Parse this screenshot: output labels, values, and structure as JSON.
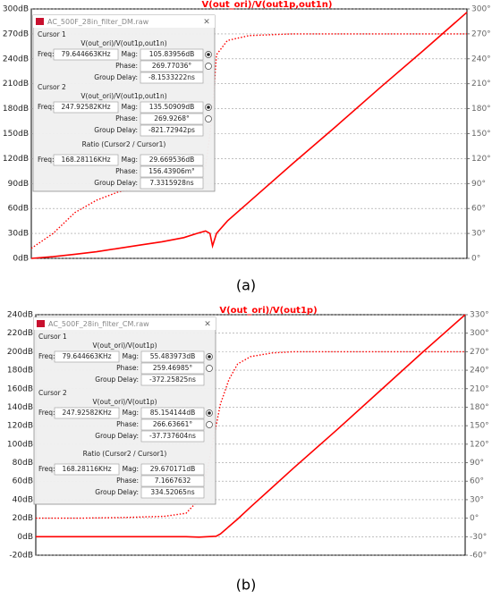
{
  "chart_data": [
    {
      "type": "line",
      "title": "V(out_ori)/V(out1p,out1n)",
      "x": [
        0,
        5,
        10,
        15,
        20,
        25,
        30,
        35,
        38,
        40,
        41,
        41.6,
        42.5,
        45,
        50,
        60,
        70,
        80,
        90,
        100
      ],
      "xlim": [
        0,
        100
      ],
      "xscale": "log",
      "grid": true,
      "ylim": [
        0,
        300
      ],
      "yticks": [
        {
          "value": 0,
          "label": "0dB"
        },
        {
          "value": 30,
          "label": "30dB"
        },
        {
          "value": 60,
          "label": "60dB"
        },
        {
          "value": 90,
          "label": "90dB"
        },
        {
          "value": 120,
          "label": "120dB"
        },
        {
          "value": 150,
          "label": "150dB"
        },
        {
          "value": 180,
          "label": "180dB"
        },
        {
          "value": 210,
          "label": "210dB"
        },
        {
          "value": 240,
          "label": "240dB"
        },
        {
          "value": 270,
          "label": "270dB"
        },
        {
          "value": 300,
          "label": "300dB"
        }
      ],
      "y2lim": [
        0,
        300
      ],
      "y2ticks": [
        {
          "value": 0,
          "label": "0°"
        },
        {
          "value": 30,
          "label": "30°"
        },
        {
          "value": 60,
          "label": "60°"
        },
        {
          "value": 90,
          "label": "90°"
        },
        {
          "value": 120,
          "label": "120°"
        },
        {
          "value": 150,
          "label": "150°"
        },
        {
          "value": 180,
          "label": "180°"
        },
        {
          "value": 210,
          "label": "210°"
        },
        {
          "value": 240,
          "label": "240°"
        },
        {
          "value": 270,
          "label": "270°"
        },
        {
          "value": 300,
          "label": "300°"
        }
      ],
      "series": [
        {
          "color": "#ff0000",
          "line_style": "solid",
          "values": [
            0,
            2,
            5,
            8,
            12,
            16,
            20,
            25,
            30,
            33,
            30,
            15,
            30,
            45,
            68,
            114,
            159,
            205,
            250,
            296
          ]
        },
        {
          "color": "#ff0000",
          "line_style": "dotted",
          "axis": "y2",
          "values": [
            12,
            30,
            55,
            70,
            80,
            85,
            88,
            90,
            95,
            110,
            150,
            180,
            245,
            262,
            268,
            270,
            270,
            270,
            270,
            270
          ]
        }
      ]
    },
    {
      "type": "line",
      "title": "V(out_ori)/V(out1p)",
      "x": [
        0,
        10,
        20,
        30,
        35,
        38,
        40,
        42,
        43,
        45,
        47,
        50,
        55,
        60,
        70,
        80,
        90,
        100
      ],
      "xlim": [
        0,
        100
      ],
      "xscale": "log",
      "grid": true,
      "ylim": [
        -20,
        240
      ],
      "yticks": [
        {
          "value": -20,
          "label": "-20dB"
        },
        {
          "value": 0,
          "label": "0dB"
        },
        {
          "value": 20,
          "label": "20dB"
        },
        {
          "value": 40,
          "label": "40dB"
        },
        {
          "value": 60,
          "label": "60dB"
        },
        {
          "value": 80,
          "label": "80dB"
        },
        {
          "value": 100,
          "label": "100dB"
        },
        {
          "value": 120,
          "label": "120dB"
        },
        {
          "value": 140,
          "label": "140dB"
        },
        {
          "value": 160,
          "label": "160dB"
        },
        {
          "value": 180,
          "label": "180dB"
        },
        {
          "value": 200,
          "label": "200dB"
        },
        {
          "value": 220,
          "label": "220dB"
        },
        {
          "value": 240,
          "label": "240dB"
        }
      ],
      "y2lim": [
        -60,
        330
      ],
      "y2ticks": [
        {
          "value": -60,
          "label": "-60°"
        },
        {
          "value": -30,
          "label": "-30°"
        },
        {
          "value": 0,
          "label": "0°"
        },
        {
          "value": 30,
          "label": "30°"
        },
        {
          "value": 60,
          "label": "60°"
        },
        {
          "value": 90,
          "label": "90°"
        },
        {
          "value": 120,
          "label": "120°"
        },
        {
          "value": 150,
          "label": "150°"
        },
        {
          "value": 180,
          "label": "180°"
        },
        {
          "value": 210,
          "label": "210°"
        },
        {
          "value": 240,
          "label": "240°"
        },
        {
          "value": 270,
          "label": "270°"
        },
        {
          "value": 300,
          "label": "300°"
        },
        {
          "value": 330,
          "label": "330°"
        }
      ],
      "series": [
        {
          "color": "#ff0000",
          "line_style": "solid",
          "values": [
            0,
            0,
            0,
            0,
            0,
            -0.5,
            0,
            0.5,
            3,
            11,
            19,
            32,
            53,
            74,
            115,
            157,
            199,
            240
          ]
        },
        {
          "color": "#ff0000",
          "line_style": "dotted",
          "axis": "y2",
          "values": [
            0,
            0,
            1,
            3,
            8,
            30,
            80,
            150,
            185,
            225,
            250,
            262,
            268,
            270,
            270,
            270,
            270,
            270
          ]
        }
      ]
    }
  ],
  "dialogs": [
    {
      "title": "AC_500F_28in_filter_DM.raw",
      "sections": [
        {
          "heading": "Cursor 1",
          "trace": "V(out_ori)/V(out1p,out1n)",
          "freq": {
            "label": "Freq:",
            "value": "79.644663KHz"
          },
          "rows": [
            {
              "label": "Mag:",
              "value": "105.83956dB"
            },
            {
              "label": "Phase:",
              "value": "269.77036°"
            },
            {
              "label": "Group Delay:",
              "value": "-8.1533222ns"
            }
          ]
        },
        {
          "heading": "Cursor 2",
          "trace": "V(out_ori)/V(out1p,out1n)",
          "freq": {
            "label": "Freq:",
            "value": "247.92582KHz"
          },
          "rows": [
            {
              "label": "Mag:",
              "value": "135.50909dB"
            },
            {
              "label": "Phase:",
              "value": "269.9268°"
            },
            {
              "label": "Group Delay:",
              "value": "-821.72942ps"
            }
          ]
        },
        {
          "heading": "Ratio (Cursor2 / Cursor1)",
          "freq": {
            "label": "Freq:",
            "value": "168.28116KHz"
          },
          "rows": [
            {
              "label": "Mag:",
              "value": "29.669536dB"
            },
            {
              "label": "Phase:",
              "value": "156.43906m°"
            },
            {
              "label": "Group Delay:",
              "value": "7.3315928ns"
            }
          ]
        }
      ]
    },
    {
      "title": "AC_500F_28in_filter_CM.raw",
      "sections": [
        {
          "heading": "Cursor 1",
          "trace": "V(out_ori)/V(out1p)",
          "freq": {
            "label": "Freq:",
            "value": "79.644663KHz"
          },
          "rows": [
            {
              "label": "Mag:",
              "value": "55.483973dB"
            },
            {
              "label": "Phase:",
              "value": "259.46985°"
            },
            {
              "label": "Group Delay:",
              "value": "-372.25825ns"
            }
          ]
        },
        {
          "heading": "Cursor 2",
          "trace": "V(out_ori)/V(out1p)",
          "freq": {
            "label": "Freq:",
            "value": "247.92582KHz"
          },
          "rows": [
            {
              "label": "Mag:",
              "value": "85.154144dB"
            },
            {
              "label": "Phase:",
              "value": "266.63661°"
            },
            {
              "label": "Group Delay:",
              "value": "-37.737604ns"
            }
          ]
        },
        {
          "heading": "Ratio (Cursor2 / Cursor1)",
          "freq": {
            "label": "Freq:",
            "value": "168.28116KHz"
          },
          "rows": [
            {
              "label": "Mag:",
              "value": "29.670171dB"
            },
            {
              "label": "Phase:",
              "value": "7.1667632"
            },
            {
              "label": "Group Delay:",
              "value": "334.52065ns"
            }
          ]
        }
      ]
    }
  ],
  "captions": [
    "(a)",
    "(b)"
  ]
}
